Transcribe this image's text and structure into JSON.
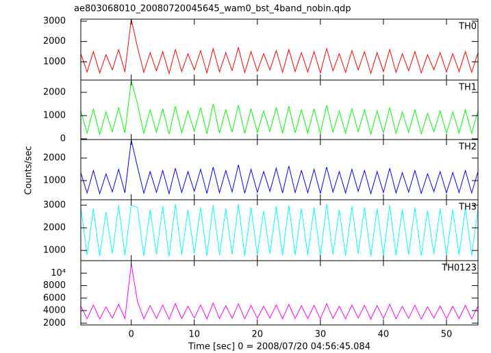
{
  "chart_data": [
    {
      "type": "line",
      "title": "ae803068010_20080720045645_wam0_bst_4band_nobin.qdp",
      "x": [
        -8,
        -7,
        -6,
        -5,
        -4,
        -3,
        -2,
        -1,
        0,
        1,
        2,
        3,
        4,
        5,
        6,
        7,
        8,
        9,
        10,
        11,
        12,
        13,
        14,
        15,
        16,
        17,
        18,
        19,
        20,
        21,
        22,
        23,
        24,
        25,
        26,
        27,
        28,
        29,
        30,
        31,
        32,
        33,
        34,
        35,
        36,
        37,
        38,
        39,
        40,
        41,
        42,
        43,
        44,
        45,
        46,
        47,
        48,
        49,
        50,
        51,
        52,
        53,
        54,
        55
      ],
      "xlim": [
        -8,
        55
      ],
      "xticks": [
        0,
        10,
        20,
        30,
        40,
        50
      ],
      "ylim": [
        100,
        3100
      ],
      "yticks": [
        1000,
        2000,
        3000
      ],
      "series": [
        {
          "name": "TH0",
          "color": "#ff0000",
          "values": [
            1400,
            500,
            1500,
            450,
            1350,
            600,
            1600,
            500,
            3100,
            1700,
            480,
            1450,
            550,
            1500,
            420,
            1600,
            520,
            1400,
            600,
            1550,
            450,
            1650,
            500,
            1450,
            560,
            1700,
            470,
            1500,
            530,
            1400,
            600,
            1550,
            480,
            1600,
            520,
            1450,
            500,
            1500,
            450,
            1650,
            550,
            1400,
            480,
            1550,
            600,
            1500,
            430,
            1450,
            520,
            1600,
            480,
            1400,
            550,
            1500,
            450,
            1350,
            600,
            1450,
            500,
            1400,
            520,
            1500,
            480,
            1450
          ]
        }
      ]
    },
    {
      "type": "line",
      "x": [
        -8,
        -7,
        -6,
        -5,
        -4,
        -3,
        -2,
        -1,
        0,
        1,
        2,
        3,
        4,
        5,
        6,
        7,
        8,
        9,
        10,
        11,
        12,
        13,
        14,
        15,
        16,
        17,
        18,
        19,
        20,
        21,
        22,
        23,
        24,
        25,
        26,
        27,
        28,
        29,
        30,
        31,
        32,
        33,
        34,
        35,
        36,
        37,
        38,
        39,
        40,
        41,
        42,
        43,
        44,
        45,
        46,
        47,
        48,
        49,
        50,
        51,
        52,
        53,
        54,
        55
      ],
      "xlim": [
        -8,
        55
      ],
      "xticks": [
        0,
        10,
        20,
        30,
        40,
        50
      ],
      "ylim": [
        -30,
        2530
      ],
      "yticks": [
        0,
        1000,
        2000
      ],
      "series": [
        {
          "name": "TH1",
          "color": "#00ff00",
          "values": [
            1200,
            250,
            1300,
            200,
            1150,
            300,
            1350,
            250,
            2500,
            1500,
            230,
            1250,
            280,
            1300,
            200,
            1400,
            260,
            1200,
            320,
            1350,
            220,
            1500,
            250,
            1250,
            290,
            1450,
            230,
            1300,
            270,
            1200,
            320,
            1350,
            240,
            1400,
            260,
            1250,
            250,
            1300,
            220,
            1450,
            280,
            1200,
            240,
            1300,
            300,
            1250,
            210,
            1200,
            260,
            1350,
            240,
            1150,
            280,
            1250,
            220,
            1100,
            300,
            1200,
            250,
            1150,
            260,
            1250,
            240,
            1200
          ]
        }
      ]
    },
    {
      "type": "line",
      "x": [
        -8,
        -7,
        -6,
        -5,
        -4,
        -3,
        -2,
        -1,
        0,
        1,
        2,
        3,
        4,
        5,
        6,
        7,
        8,
        9,
        10,
        11,
        12,
        13,
        14,
        15,
        16,
        17,
        18,
        19,
        20,
        21,
        22,
        23,
        24,
        25,
        26,
        27,
        28,
        29,
        30,
        31,
        32,
        33,
        34,
        35,
        36,
        37,
        38,
        39,
        40,
        41,
        42,
        43,
        44,
        45,
        46,
        47,
        48,
        49,
        50,
        51,
        52,
        53,
        54,
        55
      ],
      "xlim": [
        -8,
        55
      ],
      "xticks": [
        0,
        10,
        20,
        30,
        40,
        50
      ],
      "ylim": [
        150,
        2820
      ],
      "yticks": [
        1000,
        2000
      ],
      "ylabel": "Counts/sec",
      "series": [
        {
          "name": "TH2",
          "color": "#0000ff",
          "values": [
            1350,
            450,
            1450,
            420,
            1300,
            500,
            1500,
            460,
            2800,
            1600,
            440,
            1400,
            480,
            1450,
            420,
            1550,
            470,
            1400,
            520,
            1500,
            430,
            1600,
            460,
            1450,
            500,
            1700,
            440,
            1500,
            480,
            1400,
            520,
            1550,
            450,
            1650,
            470,
            1450,
            460,
            1500,
            430,
            1600,
            490,
            1400,
            450,
            1500,
            520,
            1450,
            420,
            1400,
            470,
            1550,
            450,
            1350,
            490,
            1450,
            430,
            1300,
            510,
            1400,
            460,
            1350,
            470,
            1450,
            450,
            1400
          ]
        }
      ]
    },
    {
      "type": "line",
      "x": [
        -8,
        -7,
        -6,
        -5,
        -4,
        -3,
        -2,
        -1,
        0,
        1,
        2,
        3,
        4,
        5,
        6,
        7,
        8,
        9,
        10,
        11,
        12,
        13,
        14,
        15,
        16,
        17,
        18,
        19,
        20,
        21,
        22,
        23,
        24,
        25,
        26,
        27,
        28,
        29,
        30,
        31,
        32,
        33,
        34,
        35,
        36,
        37,
        38,
        39,
        40,
        41,
        42,
        43,
        44,
        45,
        46,
        47,
        48,
        49,
        50,
        51,
        52,
        53,
        54,
        55
      ],
      "xlim": [
        -8,
        55
      ],
      "xticks": [
        0,
        10,
        20,
        30,
        40,
        50
      ],
      "ylim": [
        550,
        3240
      ],
      "yticks": [
        1000,
        2000,
        3000
      ],
      "series": [
        {
          "name": "TH3",
          "color": "#00ffff",
          "values": [
            2900,
            800,
            2850,
            750,
            2700,
            850,
            3000,
            780,
            3000,
            2900,
            760,
            2800,
            820,
            2950,
            740,
            3050,
            800,
            2800,
            860,
            2900,
            760,
            3000,
            790,
            2850,
            820,
            3050,
            770,
            2900,
            810,
            2750,
            850,
            2950,
            780,
            3000,
            800,
            2850,
            790,
            2900,
            760,
            3050,
            820,
            2800,
            770,
            2950,
            850,
            2900,
            740,
            2850,
            800,
            3000,
            780,
            2800,
            820,
            2900,
            760,
            2750,
            840,
            2850,
            790,
            2800,
            800,
            2900,
            780,
            2850
          ]
        }
      ]
    },
    {
      "type": "line",
      "x": [
        -8,
        -7,
        -6,
        -5,
        -4,
        -3,
        -2,
        -1,
        0,
        1,
        2,
        3,
        4,
        5,
        6,
        7,
        8,
        9,
        10,
        11,
        12,
        13,
        14,
        15,
        16,
        17,
        18,
        19,
        20,
        21,
        22,
        23,
        24,
        25,
        26,
        27,
        28,
        29,
        30,
        31,
        32,
        33,
        34,
        35,
        36,
        37,
        38,
        39,
        40,
        41,
        42,
        43,
        44,
        45,
        46,
        47,
        48,
        49,
        50,
        51,
        52,
        53,
        54,
        55
      ],
      "xlim": [
        -8,
        55
      ],
      "xticks": [
        0,
        10,
        20,
        30,
        40,
        50
      ],
      "ylim": [
        1700,
        12000
      ],
      "yticks": [
        2000,
        4000,
        6000,
        8000,
        {
          "value": 10000,
          "label": "10⁴"
        }
      ],
      "xlabel": "Time [sec] 0 = 2008/07/20 04:56:45.084",
      "series": [
        {
          "name": "TH0123",
          "color": "#ff00ff",
          "values": [
            4700,
            2700,
            4900,
            2650,
            4600,
            2800,
            5000,
            2700,
            11500,
            5400,
            2680,
            4800,
            2750,
            4900,
            2620,
            5100,
            2720,
            4700,
            2800,
            4900,
            2650,
            5200,
            2700,
            4800,
            2760,
            5100,
            2670,
            4850,
            2730,
            4700,
            2800,
            4900,
            2680,
            5000,
            2720,
            4800,
            2700,
            4850,
            2650,
            5100,
            2750,
            4700,
            2680,
            4900,
            2800,
            4850,
            2630,
            4800,
            2720,
            5000,
            2680,
            4700,
            2750,
            4850,
            2650,
            4600,
            2800,
            4750,
            2700,
            4700,
            2720,
            4850,
            2680,
            4750
          ]
        }
      ]
    }
  ]
}
